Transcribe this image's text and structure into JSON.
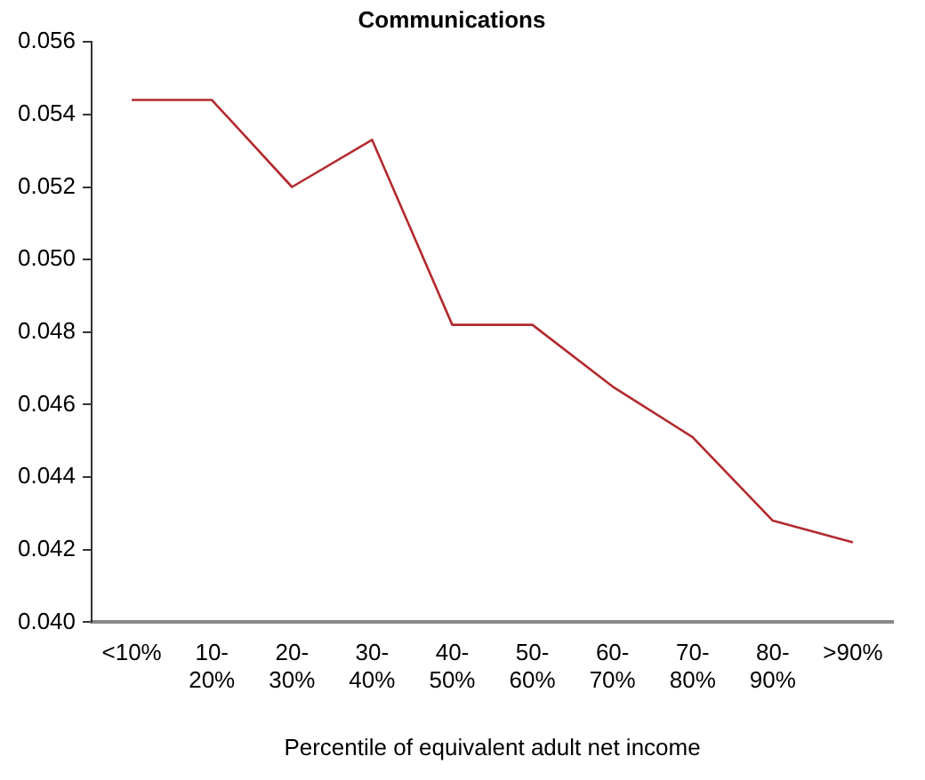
{
  "chart_data": {
    "type": "line",
    "title": "Communications",
    "xlabel": "Percentile of equivalent adult net income",
    "categories": [
      "<10%",
      "10-20%",
      "20-30%",
      "30-40%",
      "40-50%",
      "50-60%",
      "60-70%",
      "70-80%",
      "80-90%",
      ">90%"
    ],
    "series": [
      {
        "color": "#b22a2e",
        "values": [
          0.0544,
          0.0544,
          0.052,
          0.0533,
          0.0482,
          0.0482,
          0.0465,
          0.0451,
          0.0428,
          0.0422
        ]
      }
    ],
    "ylim": [
      0.04,
      0.056
    ],
    "yticks": [
      {
        "value": 0.04,
        "label": "0.040"
      },
      0.042,
      0.044,
      0.046,
      0.048,
      {
        "value": 0.05,
        "label": "0.050"
      },
      0.052,
      0.054,
      0.056
    ],
    "grid": false,
    "legend": false,
    "marker": "none",
    "line_style": "solid"
  }
}
